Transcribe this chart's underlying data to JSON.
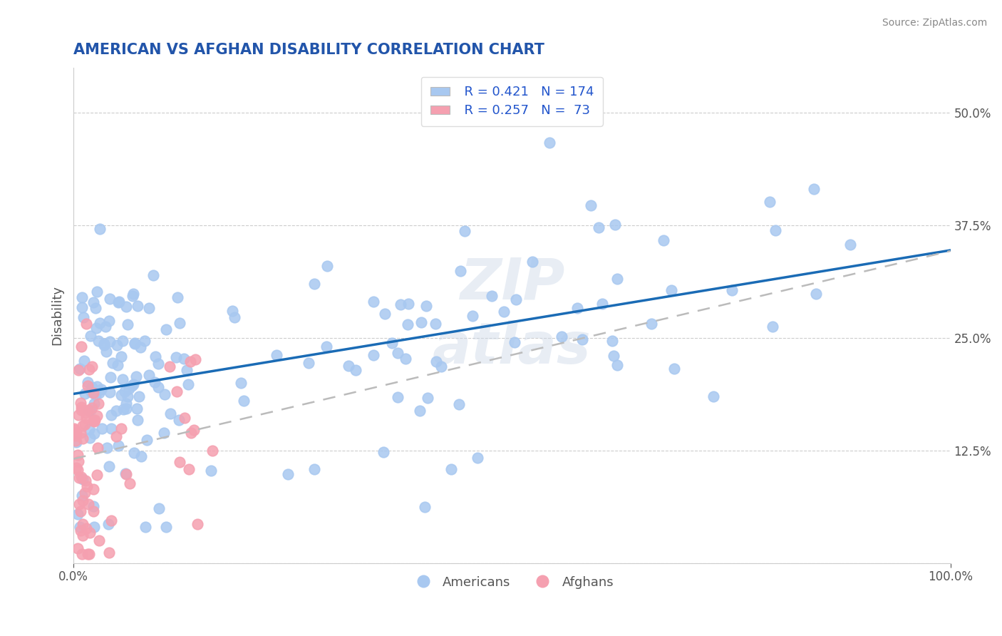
{
  "title": "AMERICAN VS AFGHAN DISABILITY CORRELATION CHART",
  "source": "Source: ZipAtlas.com",
  "ylabel": "Disability",
  "xlim": [
    0.0,
    1.0
  ],
  "ylim": [
    0.0,
    0.55
  ],
  "yticks": [
    0.0,
    0.125,
    0.25,
    0.375,
    0.5
  ],
  "xticks": [
    0.0,
    1.0
  ],
  "xtick_labels": [
    "0.0%",
    "100.0%"
  ],
  "grid_color": "#cccccc",
  "background_color": "#ffffff",
  "american_color": "#a8c8f0",
  "afghan_color": "#f5a0b0",
  "american_line_color": "#1a6bb5",
  "afghan_line_color": "#cc3366",
  "legend_r_american": "R = 0.421",
  "legend_n_american": "N = 174",
  "legend_r_afghan": "R = 0.257",
  "legend_n_afghan": "N =  73",
  "title_color": "#2255aa",
  "source_color": "#888888",
  "american_R": 0.421,
  "afghan_R": 0.257,
  "n_american": 174,
  "n_afghan": 73
}
